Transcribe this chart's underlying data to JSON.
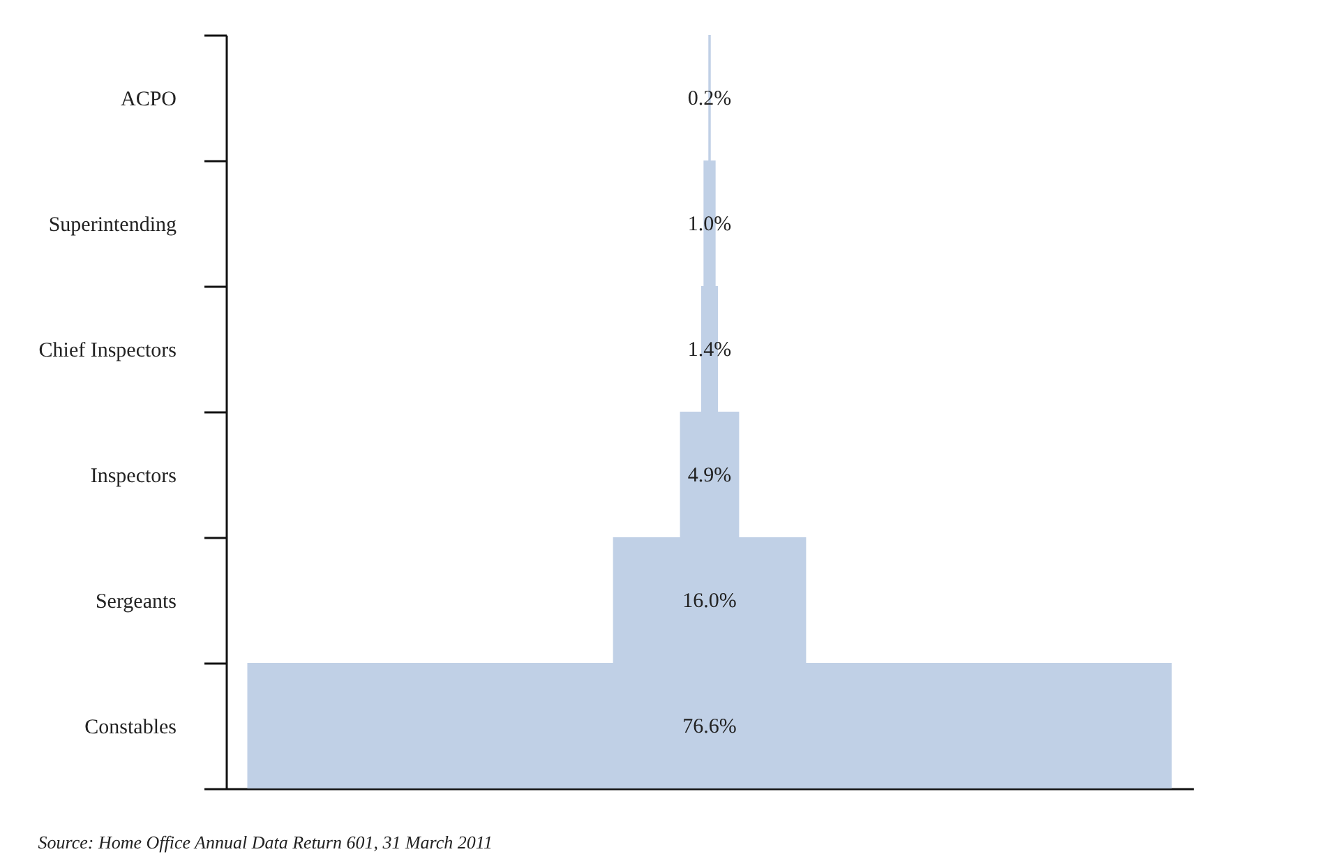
{
  "chart_data": {
    "type": "other",
    "categories": [
      "ACPO",
      "Superintending",
      "Chief Inspectors",
      "Inspectors",
      "Sergeants",
      "Constables"
    ],
    "values": [
      0.2,
      1.0,
      1.4,
      4.9,
      16.0,
      76.6
    ],
    "value_labels": [
      "0.2%",
      "1.0%",
      "1.4%",
      "4.9%",
      "16.0%",
      "76.6%"
    ],
    "color": "#c0d0e6",
    "annotations": [
      "Source: Home Office Annual Data Return 601, 31 March 2011"
    ]
  }
}
